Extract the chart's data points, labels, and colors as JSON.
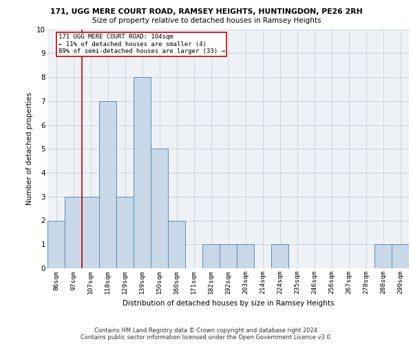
{
  "title_line1": "171, UGG MERE COURT ROAD, RAMSEY HEIGHTS, HUNTINGDON, PE26 2RH",
  "title_line2": "Size of property relative to detached houses in Ramsey Heights",
  "xlabel": "Distribution of detached houses by size in Ramsey Heights",
  "ylabel": "Number of detached properties",
  "categories": [
    "86sqm",
    "97sqm",
    "107sqm",
    "118sqm",
    "129sqm",
    "139sqm",
    "150sqm",
    "160sqm",
    "171sqm",
    "182sqm",
    "192sqm",
    "203sqm",
    "214sqm",
    "224sqm",
    "235sqm",
    "246sqm",
    "256sqm",
    "267sqm",
    "278sqm",
    "288sqm",
    "299sqm"
  ],
  "values": [
    2,
    3,
    3,
    7,
    3,
    8,
    5,
    2,
    0,
    1,
    1,
    1,
    0,
    1,
    0,
    0,
    0,
    0,
    0,
    1,
    1
  ],
  "bar_color": "#c8d8e8",
  "bar_edge_color": "#5a8ab0",
  "subject_label_line1": "171 UGG MERE COURT ROAD: 104sqm",
  "subject_label_line2": "← 11% of detached houses are smaller (4)",
  "subject_label_line3": "89% of semi-detached houses are larger (33) →",
  "annotation_box_color": "#cc0000",
  "ylim": [
    0,
    10
  ],
  "yticks": [
    0,
    1,
    2,
    3,
    4,
    5,
    6,
    7,
    8,
    9,
    10
  ],
  "footer_line1": "Contains HM Land Registry data © Crown copyright and database right 2024.",
  "footer_line2": "Contains public sector information licensed under the Open Government Licence v3.0.",
  "bg_color": "#eef2f7",
  "grid_color": "#c8d0dc"
}
